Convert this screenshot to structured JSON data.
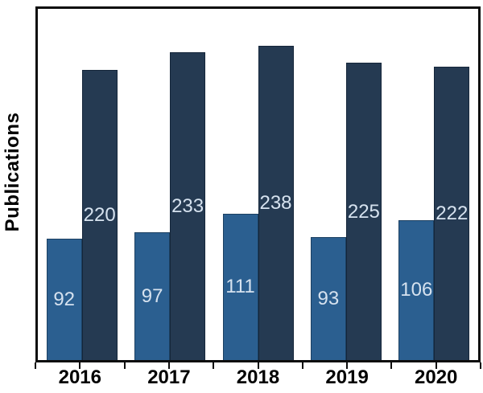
{
  "figure": {
    "background": "#ffffff",
    "frame_color": "#0d0d0d",
    "axis_text_color": "#000000"
  },
  "chart_data": {
    "type": "bar",
    "title": "",
    "xlabel": "",
    "ylabel": "Publications",
    "categories": [
      "2016",
      "2017",
      "2018",
      "2019",
      "2020"
    ],
    "series": [
      {
        "name": "light-blue-bars",
        "color": "#2b5f90",
        "edge_color": "#1c4062",
        "values": [
          92,
          97,
          111,
          93,
          106
        ]
      },
      {
        "name": "dark-navy-bars",
        "color": "#253a52",
        "edge_color": "#15263a",
        "values": [
          220,
          233,
          238,
          225,
          222
        ]
      }
    ],
    "bar_value_labels": true,
    "bar_value_label_color": "#d6e2ef",
    "ylim": [
      0,
      266
    ],
    "y_ticks_visible": false,
    "x_tick_interval": 0.5,
    "grid": false,
    "legend": "none"
  }
}
